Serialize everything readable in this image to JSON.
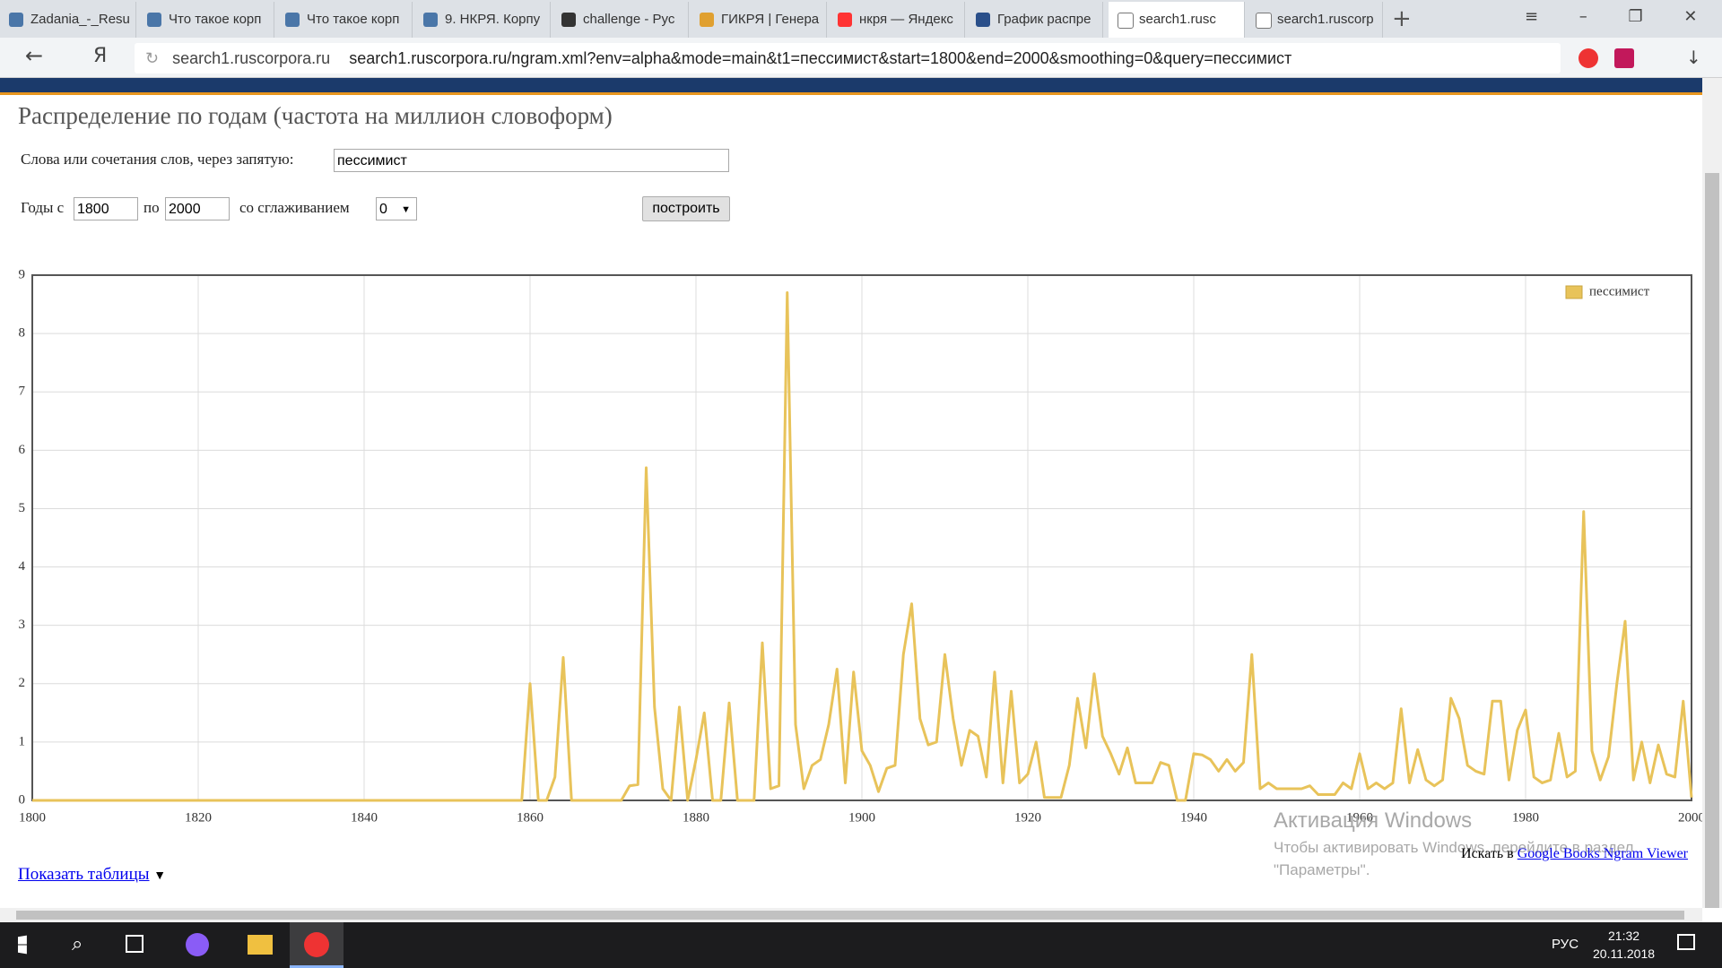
{
  "browser": {
    "tabs": [
      "Zadania_-_Resu",
      "Что такое корп",
      "Что такое корп",
      "9. НКРЯ. Корпу",
      "challenge - Рус",
      "ГИКРЯ | Генера",
      "нкря — Яндекс",
      "График распре",
      "search1.rusc",
      "search1.ruscorp"
    ],
    "url_domain": "search1.ruscorpora.ru",
    "url": "search1.ruscorpora.ru/ngram.xml?env=alpha&mode=main&t1=пессимист&start=1800&end=2000&smoothing=0&query=пессимист"
  },
  "page": {
    "heading": "Распределение по годам (частота на миллион словоформ)",
    "query_label": "Слова или сочетания слов, через запятую:",
    "query_value": "пессимист",
    "years_from_label": "Годы с",
    "year_from": "1800",
    "to_label": "по",
    "year_to": "2000",
    "smoothing_label": "со сглаживанием",
    "smoothing_value": "0",
    "build_button": "построить",
    "show_tables": "Показать таблицы",
    "search_in": "Искать в",
    "google_link": "Google Books Ngram Viewer"
  },
  "chart_data": {
    "type": "line",
    "x": [
      1800,
      1801,
      1802,
      1803,
      1804,
      1805,
      1806,
      1807,
      1808,
      1809,
      1810,
      1811,
      1812,
      1813,
      1814,
      1815,
      1816,
      1817,
      1818,
      1819,
      1820,
      1821,
      1822,
      1823,
      1824,
      1825,
      1826,
      1827,
      1828,
      1829,
      1830,
      1831,
      1832,
      1833,
      1834,
      1835,
      1836,
      1837,
      1838,
      1839,
      1840,
      1841,
      1842,
      1843,
      1844,
      1845,
      1846,
      1847,
      1848,
      1849,
      1850,
      1851,
      1852,
      1853,
      1854,
      1855,
      1856,
      1857,
      1858,
      1859,
      1860,
      1861,
      1862,
      1863,
      1864,
      1865,
      1866,
      1867,
      1868,
      1869,
      1870,
      1871,
      1872,
      1873,
      1874,
      1875,
      1876,
      1877,
      1878,
      1879,
      1880,
      1881,
      1882,
      1883,
      1884,
      1885,
      1886,
      1887,
      1888,
      1889,
      1890,
      1891,
      1892,
      1893,
      1894,
      1895,
      1896,
      1897,
      1898,
      1899,
      1900,
      1901,
      1902,
      1903,
      1904,
      1905,
      1906,
      1907,
      1908,
      1909,
      1910,
      1911,
      1912,
      1913,
      1914,
      1915,
      1916,
      1917,
      1918,
      1919,
      1920,
      1921,
      1922,
      1923,
      1924,
      1925,
      1926,
      1927,
      1928,
      1929,
      1930,
      1931,
      1932,
      1933,
      1934,
      1935,
      1936,
      1937,
      1938,
      1939,
      1940,
      1941,
      1942,
      1943,
      1944,
      1945,
      1946,
      1947,
      1948,
      1949,
      1950,
      1951,
      1952,
      1953,
      1954,
      1955,
      1956,
      1957,
      1958,
      1959,
      1960,
      1961,
      1962,
      1963,
      1964,
      1965,
      1966,
      1967,
      1968,
      1969,
      1970,
      1971,
      1972,
      1973,
      1974,
      1975,
      1976,
      1977,
      1978,
      1979,
      1980,
      1981,
      1982,
      1983,
      1984,
      1985,
      1986,
      1987,
      1988,
      1989,
      1990,
      1991,
      1992,
      1993,
      1994,
      1995,
      1996,
      1997,
      1998,
      1999,
      2000
    ],
    "series": [
      {
        "name": "пессимист",
        "color": "#e8c35a",
        "values": [
          0,
          0,
          0,
          0,
          0,
          0,
          0,
          0,
          0,
          0,
          0,
          0,
          0,
          0,
          0,
          0,
          0,
          0,
          0,
          0,
          0,
          0,
          0,
          0,
          0,
          0,
          0,
          0,
          0,
          0,
          0,
          0,
          0,
          0,
          0,
          0,
          0,
          0,
          0,
          0,
          0,
          0,
          0,
          0,
          0,
          0,
          0,
          0,
          0,
          0,
          0,
          0,
          0,
          0,
          0,
          0,
          0,
          0,
          0,
          0,
          2.0,
          0,
          0,
          0.4,
          2.45,
          0,
          0,
          0,
          0,
          0,
          0,
          0,
          0.25,
          0.27,
          5.7,
          1.6,
          0.2,
          0,
          1.6,
          0,
          0.7,
          1.5,
          0,
          0,
          1.67,
          0,
          0,
          0,
          2.7,
          0.2,
          0.25,
          8.7,
          1.3,
          0.2,
          0.6,
          0.7,
          1.3,
          2.25,
          0.3,
          2.2,
          0.85,
          0.6,
          0.15,
          0.55,
          0.6,
          2.5,
          3.37,
          1.4,
          0.95,
          1.0,
          2.5,
          1.4,
          0.6,
          1.2,
          1.1,
          0.4,
          2.2,
          0.3,
          1.87,
          0.3,
          0.45,
          1.0,
          0.05,
          0.05,
          0.05,
          0.6,
          1.75,
          0.9,
          2.17,
          1.1,
          0.8,
          0.45,
          0.9,
          0.3,
          0.3,
          0.3,
          0.65,
          0.6,
          0,
          0,
          0.8,
          0.78,
          0.7,
          0.5,
          0.7,
          0.5,
          0.65,
          2.5,
          0.2,
          0.3,
          0.2,
          0.2,
          0.2,
          0.2,
          0.25,
          0.1,
          0.1,
          0.1,
          0.3,
          0.2,
          0.8,
          0.2,
          0.3,
          0.2,
          0.3,
          1.57,
          0.3,
          0.87,
          0.35,
          0.25,
          0.35,
          1.75,
          1.4,
          0.6,
          0.5,
          0.45,
          1.7,
          1.7,
          0.35,
          1.2,
          1.55,
          0.4,
          0.3,
          0.35,
          1.15,
          0.4,
          0.5,
          4.95,
          0.85,
          0.35,
          0.75,
          2.0,
          3.07,
          0.35,
          1.0,
          0.3,
          0.95,
          0.45,
          0.4,
          1.7,
          0.05
        ]
      }
    ],
    "xlim": [
      1800,
      2000
    ],
    "xticks": [
      1800,
      1820,
      1840,
      1860,
      1880,
      1900,
      1920,
      1940,
      1960,
      1980,
      2000
    ],
    "ylim": [
      0,
      9
    ],
    "yticks": [
      0,
      1,
      2,
      3,
      4,
      5,
      6,
      7,
      8,
      9
    ],
    "grid": true,
    "legend": "top-right"
  },
  "watermark": {
    "title": "Активация Windows",
    "lines": [
      "Чтобы активировать Windows, перейдите в раздел",
      "\"Параметры\"."
    ]
  },
  "taskbar": {
    "lang": "РУС",
    "time": "21:32",
    "date": "20.11.2018"
  }
}
